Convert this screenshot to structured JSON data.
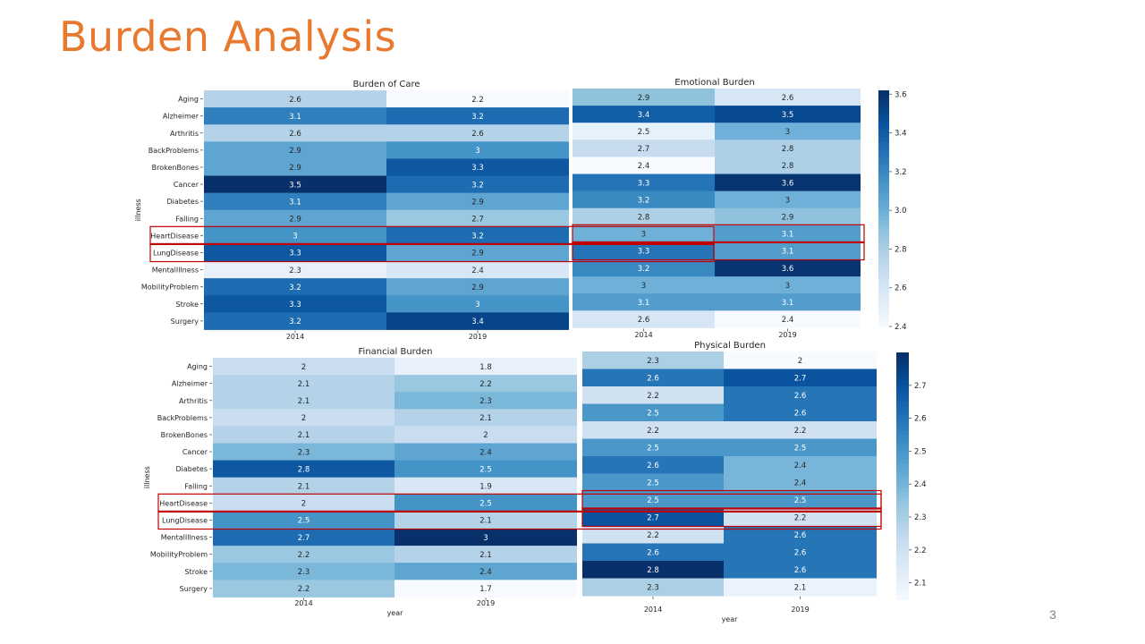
{
  "slide": {
    "title": "Burden Analysis",
    "page_number": "3"
  },
  "chart_data": [
    {
      "type": "heatmap",
      "title": "Burden of Care",
      "ylabel": "illness",
      "xlabel": "",
      "categories": [
        "Aging",
        "Alzheimer",
        "Arthritis",
        "BackProblems",
        "BrokenBones",
        "Cancer",
        "Diabetes",
        "Falling",
        "HeartDisease",
        "LungDisease",
        "MentalIllness",
        "MobilityProblem",
        "Stroke",
        "Surgery"
      ],
      "x": [
        "2014",
        "2019"
      ],
      "series": [
        {
          "name": "2014",
          "values": [
            2.6,
            3.1,
            2.6,
            2.9,
            2.9,
            3.5,
            3.1,
            2.9,
            3,
            3.3,
            2.3,
            3.2,
            3.3,
            3.2
          ]
        },
        {
          "name": "2019",
          "values": [
            2.2,
            3.2,
            2.6,
            3,
            3.3,
            3.2,
            2.9,
            2.7,
            3.2,
            2.9,
            2.4,
            2.9,
            3,
            3.4
          ]
        }
      ],
      "color_range": [
        2.2,
        3.5
      ],
      "colormap": "Blues",
      "highlighted_rows": [
        "HeartDisease",
        "LungDisease"
      ]
    },
    {
      "type": "heatmap",
      "title": "Emotional Burden",
      "ylabel": "",
      "xlabel": "",
      "categories": [
        "Aging",
        "Alzheimer",
        "Arthritis",
        "BackProblems",
        "BrokenBones",
        "Cancer",
        "Diabetes",
        "Falling",
        "HeartDisease",
        "LungDisease",
        "MentalIllness",
        "MobilityProblem",
        "Stroke",
        "Surgery"
      ],
      "x": [
        "2014",
        "2019"
      ],
      "series": [
        {
          "name": "2014",
          "values": [
            2.9,
            3.4,
            2.5,
            2.7,
            2.4,
            3.3,
            3.2,
            2.8,
            3,
            3.3,
            3.2,
            3,
            3.1,
            2.6
          ]
        },
        {
          "name": "2019",
          "values": [
            2.6,
            3.5,
            3,
            2.8,
            2.8,
            3.6,
            3,
            2.9,
            3.1,
            3.1,
            3.6,
            3,
            3.1,
            2.4
          ]
        }
      ],
      "color_range": [
        2.4,
        3.62
      ],
      "colorbar_ticks": [
        "2.4",
        "2.6",
        "2.8",
        "3.0",
        "3.2",
        "3.4",
        "3.6"
      ],
      "colormap": "Blues",
      "highlighted_rows": [
        "HeartDisease",
        "LungDisease"
      ]
    },
    {
      "type": "heatmap",
      "title": "Financial Burden",
      "ylabel": "illness",
      "xlabel": "year",
      "categories": [
        "Aging",
        "Alzheimer",
        "Arthritis",
        "BackProblems",
        "BrokenBones",
        "Cancer",
        "Diabetes",
        "Falling",
        "HeartDisease",
        "LungDisease",
        "MentalIllness",
        "MobilityProblem",
        "Stroke",
        "Surgery"
      ],
      "x": [
        "2014",
        "2019"
      ],
      "series": [
        {
          "name": "2014",
          "values": [
            2,
            2.1,
            2.1,
            2,
            2.1,
            2.3,
            2.8,
            2.1,
            2,
            2.5,
            2.7,
            2.2,
            2.3,
            2.2
          ]
        },
        {
          "name": "2019",
          "values": [
            1.8,
            2.2,
            2.3,
            2.1,
            2,
            2.4,
            2.5,
            1.9,
            2.5,
            2.1,
            3,
            2.1,
            2.4,
            1.7
          ]
        }
      ],
      "color_range": [
        1.7,
        3.0
      ],
      "colormap": "Blues",
      "highlighted_rows": [
        "HeartDisease",
        "LungDisease"
      ]
    },
    {
      "type": "heatmap",
      "title": "Physical Burden",
      "ylabel": "",
      "xlabel": "year",
      "categories": [
        "Aging",
        "Alzheimer",
        "Arthritis",
        "BackProblems",
        "BrokenBones",
        "Cancer",
        "Diabetes",
        "Falling",
        "HeartDisease",
        "LungDisease",
        "MentalIllness",
        "MobilityProblem",
        "Stroke",
        "Surgery"
      ],
      "x": [
        "2014",
        "2019"
      ],
      "series": [
        {
          "name": "2014",
          "values": [
            2.3,
            2.6,
            2.2,
            2.5,
            2.2,
            2.5,
            2.6,
            2.5,
            2.5,
            2.7,
            2.2,
            2.6,
            2.8,
            2.3
          ]
        },
        {
          "name": "2019",
          "values": [
            2,
            2.7,
            2.6,
            2.6,
            2.2,
            2.5,
            2.4,
            2.4,
            2.5,
            2.2,
            2.6,
            2.6,
            2.6,
            2.1
          ]
        }
      ],
      "color_range": [
        2.05,
        2.8
      ],
      "colorbar_ticks": [
        "2.1",
        "2.2",
        "2.3",
        "2.4",
        "2.5",
        "2.6",
        "2.7"
      ],
      "colormap": "Blues",
      "highlighted_rows": [
        "HeartDisease",
        "LungDisease"
      ]
    }
  ]
}
